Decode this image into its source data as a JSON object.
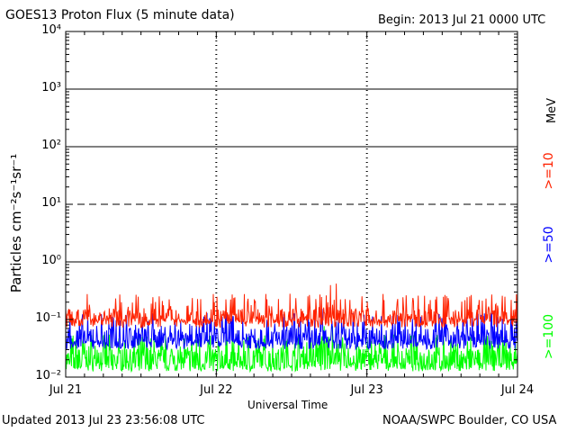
{
  "chart_data": {
    "type": "line",
    "title": "GOES13 Proton Flux (5 minute data)",
    "begin_label": "Begin: 2013 Jul 21 0000 UTC",
    "xlabel": "Universal Time",
    "ylabel": "Particles cm⁻²s⁻¹sr⁻¹",
    "y_scale": "log",
    "ylim": [
      0.01,
      10000
    ],
    "y_tick_labels": [
      "10⁻²",
      "10⁻¹",
      "10⁰",
      "10¹",
      "10²",
      "10³",
      "10⁴"
    ],
    "x_range": [
      "2013-07-21",
      "2013-07-24"
    ],
    "x_tick_labels": [
      "Jul 21",
      "Jul 22",
      "Jul 23",
      "Jul 24"
    ],
    "unit_label": "MeV",
    "series": [
      {
        "name": ">=10",
        "color": "#ff2200",
        "baseline": 0.11,
        "low": 0.08,
        "peak_max": 0.28
      },
      {
        "name": ">=50",
        "color": "#0000ff",
        "baseline": 0.05,
        "low": 0.034,
        "peak_max": 0.13
      },
      {
        "name": ">=100",
        "color": "#00ff00",
        "baseline": 0.022,
        "low": 0.014,
        "peak_max": 0.055
      }
    ],
    "threshold_lines": [
      1,
      10,
      100,
      1000
    ],
    "grid": true
  },
  "footer": {
    "updated": "Updated 2013 Jul 23 23:56:08 UTC",
    "source": "NOAA/SWPC Boulder, CO USA"
  }
}
